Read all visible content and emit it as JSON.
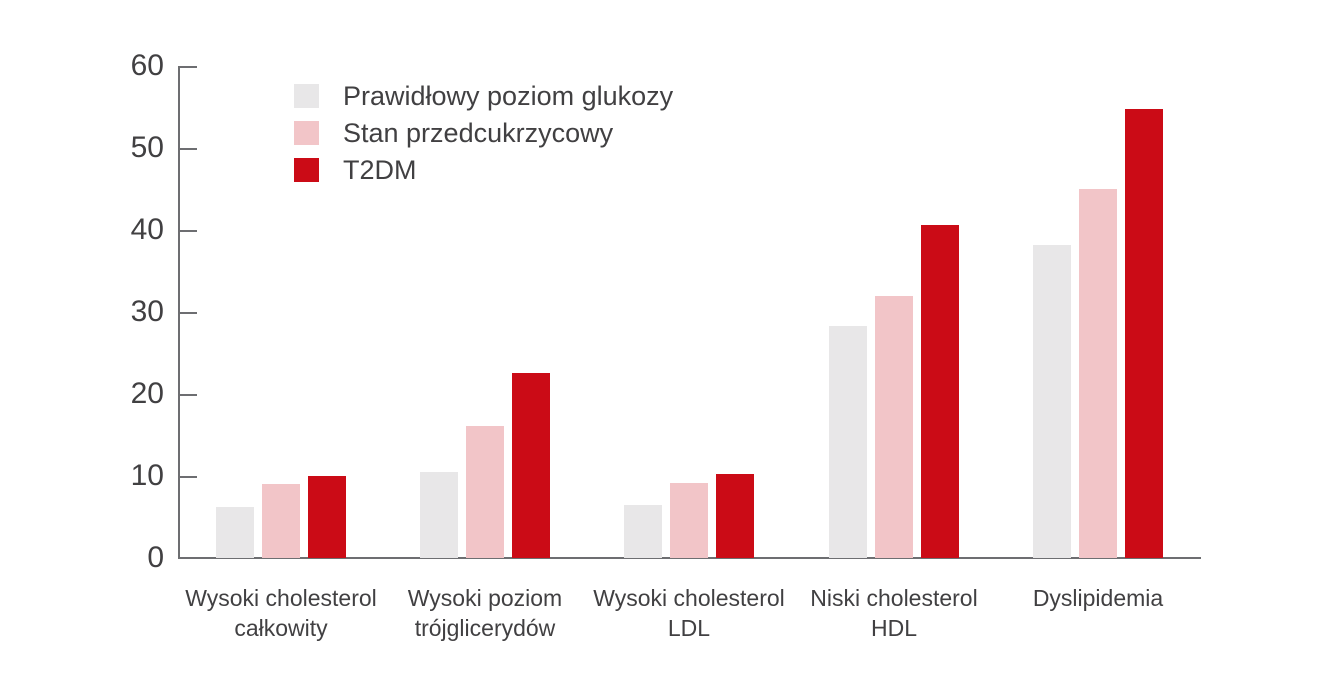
{
  "chart_data": {
    "type": "bar",
    "title": "",
    "xlabel": "",
    "ylabel": "",
    "grid": false,
    "legend_position": "inside-top-left",
    "ylim": [
      0,
      60
    ],
    "yticks": [
      0,
      10,
      20,
      30,
      40,
      50,
      60
    ],
    "categories": [
      "Wysoki cholesterol całkowity",
      "Wysoki poziom trójglicerydów",
      "Wysoki cholesterol LDL",
      "Niski cholesterol HDL",
      "Dyslipidemia"
    ],
    "category_label_lines": [
      [
        "Wysoki cholesterol",
        "całkowity"
      ],
      [
        "Wysoki poziom",
        "trójglicerydów"
      ],
      [
        "Wysoki cholesterol",
        "LDL"
      ],
      [
        "Niski cholesterol",
        "HDL"
      ],
      [
        "Dyslipidemia"
      ]
    ],
    "series": [
      {
        "name": "Prawidłowy poziom glukozy",
        "color": "#e8e7e8",
        "values": [
          6.2,
          10.5,
          6.5,
          28.3,
          38.2
        ]
      },
      {
        "name": "Stan przedcukrzycowy",
        "color": "#f2c5c8",
        "values": [
          9.0,
          16.1,
          9.2,
          32.0,
          45.0
        ]
      },
      {
        "name": "T2DM",
        "color": "#cb0b16",
        "values": [
          10.0,
          22.5,
          10.2,
          40.6,
          54.7
        ]
      }
    ]
  },
  "colors": {
    "axis": "#6d6e71",
    "text": "#414042",
    "background": "#ffffff"
  }
}
